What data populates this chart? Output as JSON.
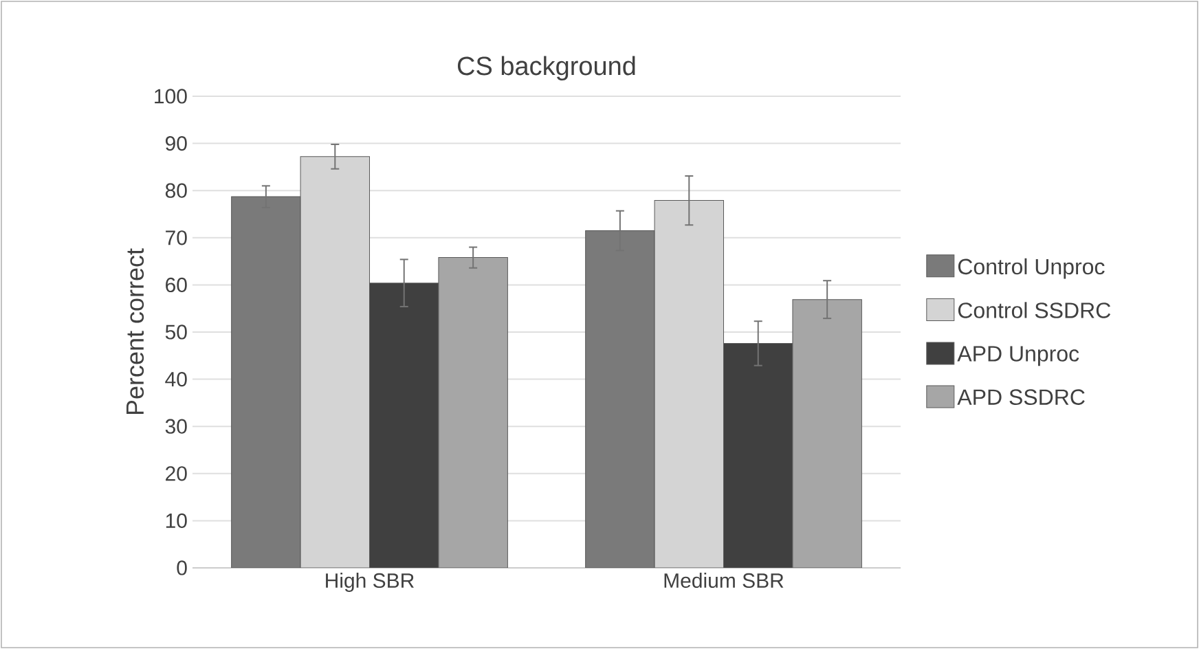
{
  "chart_data": {
    "type": "bar",
    "title": "CS background",
    "ylabel": "Percent correct",
    "categories": [
      "High SBR",
      "Medium SBR"
    ],
    "series": [
      {
        "name": "Control Unproc",
        "color": "#7a7a7a",
        "values": [
          78.7,
          71.5
        ],
        "errors": [
          2.3,
          4.2
        ]
      },
      {
        "name": "Control SSDRC",
        "color": "#d4d4d4",
        "values": [
          87.2,
          77.9
        ],
        "errors": [
          2.6,
          5.2
        ]
      },
      {
        "name": "APD Unproc",
        "color": "#404040",
        "values": [
          60.4,
          47.6
        ],
        "errors": [
          5.0,
          4.7
        ]
      },
      {
        "name": "APD SSDRC",
        "color": "#a6a6a6",
        "values": [
          65.8,
          56.9
        ],
        "errors": [
          2.2,
          4.0
        ]
      }
    ],
    "ylim": [
      0,
      100
    ],
    "yticks": [
      0,
      10,
      20,
      30,
      40,
      50,
      60,
      70,
      80,
      90,
      100
    ],
    "grid": "y",
    "legend": "right"
  }
}
